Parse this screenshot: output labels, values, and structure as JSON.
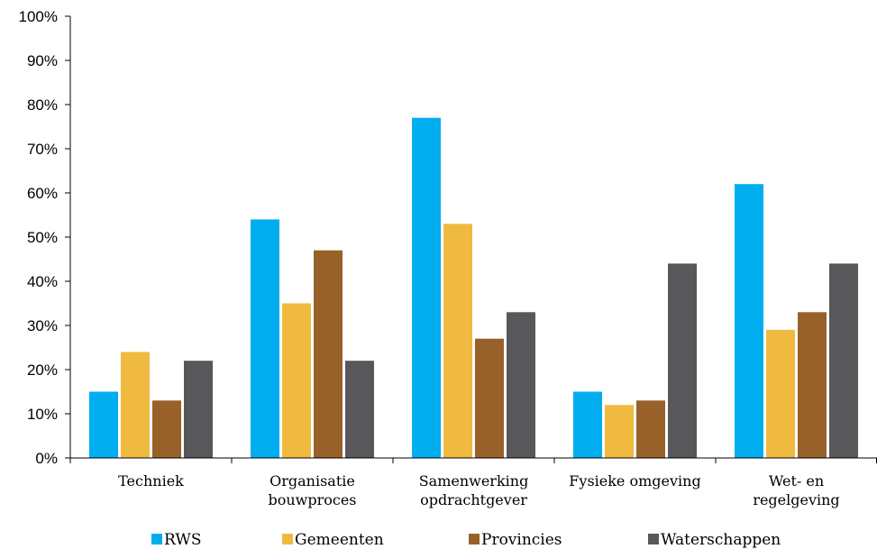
{
  "chart_data": {
    "type": "bar",
    "categories": [
      [
        "Techniek"
      ],
      [
        "Organisatie",
        "bouwproces"
      ],
      [
        "Samenwerking",
        "opdrachtgever"
      ],
      [
        "Fysieke omgeving"
      ],
      [
        "Wet- en",
        "regelgeving"
      ]
    ],
    "series": [
      {
        "name": "RWS",
        "values": [
          15,
          54,
          77,
          15,
          62
        ],
        "color": "#00AEEF"
      },
      {
        "name": "Gemeenten",
        "values": [
          24,
          35,
          53,
          12,
          29
        ],
        "color": "#F0BA41"
      },
      {
        "name": "Provincies",
        "values": [
          13,
          47,
          27,
          13,
          33
        ],
        "color": "#98612A"
      },
      {
        "name": "Waterschappen",
        "values": [
          22,
          22,
          33,
          44,
          44
        ],
        "color": "#58585A"
      }
    ],
    "ylim": [
      0,
      100
    ],
    "yticks": [
      "0%",
      "10%",
      "20%",
      "30%",
      "40%",
      "50%",
      "60%",
      "70%",
      "80%",
      "90%",
      "100%"
    ],
    "grid": false,
    "legend": "bottom",
    "title": "",
    "xlabel": "",
    "ylabel": ""
  }
}
